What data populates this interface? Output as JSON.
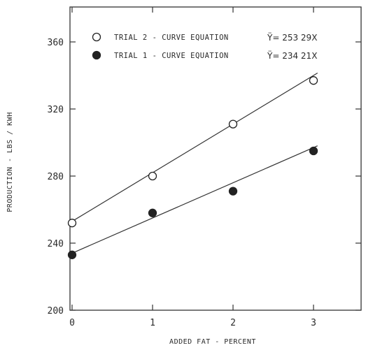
{
  "chart_data": {
    "type": "scatter",
    "xlabel": "ADDED FAT - PERCENT",
    "ylabel": "PRODUCTION - LBS / KWH",
    "xlim": [
      0,
      3.25
    ],
    "ylim": [
      200,
      380
    ],
    "x_ticks": [
      "0",
      "1",
      "2",
      "3"
    ],
    "y_ticks": [
      "200",
      "240",
      "280",
      "320",
      "360"
    ],
    "grid": false,
    "legend_position": "top",
    "series": [
      {
        "name": "TRIAL 2 - CURVE EQUATION",
        "equation": "Ÿ= 253  29X",
        "marker": "open-circle",
        "x": [
          0,
          1,
          2,
          3
        ],
        "y": [
          252,
          280,
          311,
          337
        ],
        "fit_line": {
          "intercept": 253,
          "slope": 29
        }
      },
      {
        "name": "TRIAL 1 - CURVE EQUATION",
        "equation": "Ÿ= 234  21X",
        "marker": "filled-circle",
        "x": [
          0,
          1,
          2,
          3
        ],
        "y": [
          233,
          258,
          271,
          295
        ],
        "fit_line": {
          "intercept": 234,
          "slope": 21
        }
      }
    ]
  }
}
